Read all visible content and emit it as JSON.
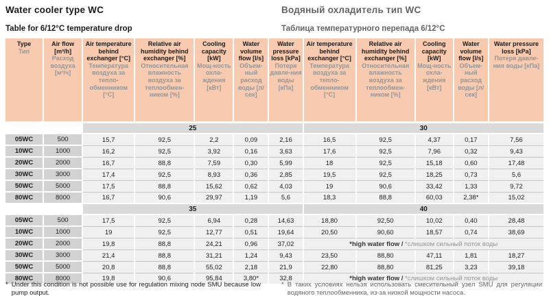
{
  "page": {
    "title_en": "Water cooler type WC",
    "title_ru": "Водяный охладитель тип WC",
    "subtitle_en": "Table for 6/12°C temperature drop",
    "subtitle_ru": "Таблица температурного перепада 6/12°C"
  },
  "colors": {
    "header_bg": "#f8cbb1",
    "gray_cell_bg": "#d2d2d2",
    "band_bg": "#dadada",
    "data_cell_bg": "#f0f0f0",
    "row_separator": "#c6c6c6",
    "header_text_en": "#1a1a1a",
    "header_text_ru": "#959595",
    "ru_title_text": "#636363"
  },
  "table": {
    "columns": [
      {
        "en": "Type",
        "ru": "Тип"
      },
      {
        "en": "Air flow [m³/h]",
        "ru": "Расход воздуха [м³/ч]"
      },
      {
        "en": "Air temperature behind exchanger [°C]",
        "ru": "Температура воздуха за тепло-обменником [°C]"
      },
      {
        "en": "Relative air humidity behind exchanger [%]",
        "ru": "Относительная влажность воздуха за теплообмен-ником [%]"
      },
      {
        "en": "Cooling capacity [kW]",
        "ru": "Мощ-ность охла-ждения [кВт]"
      },
      {
        "en": "Water volume flow [l/s]",
        "ru": "Объем-ный расход воды [л/сек]"
      },
      {
        "en": "Water pressure loss [kPa]",
        "ru": "Потеря давле-ния воды [кПа]"
      },
      {
        "en": "Air temperature behind exchanger [°C]",
        "ru": "Температура воздуха за тепло-обменником [°C]"
      },
      {
        "en": "Relative air humidity behind exchanger [%]",
        "ru": "Относительная влажность воздуха за теплообмен-ником [%]"
      },
      {
        "en": "Cooling capacity [kW]",
        "ru": "Мощ-ность охла-ждения [кВт]"
      },
      {
        "en": "Water volume flow [l/s]",
        "ru": "Объем-ный расход воды [л/сек]"
      },
      {
        "en": "Water pressure loss [kPa]",
        "ru": "Потеря давле-ния воды [кПа]"
      }
    ],
    "sections": [
      {
        "band_left": "25",
        "band_right": "30",
        "rows": [
          {
            "type": "05WC",
            "air_flow": "500",
            "left": [
              "15,7",
              "92,5",
              "2,2",
              "0,09",
              "2,16"
            ],
            "right": [
              "16,5",
              "92,5",
              "4,37",
              "0,17",
              "7,56"
            ]
          },
          {
            "type": "10WC",
            "air_flow": "1000",
            "left": [
              "16,2",
              "92,5",
              "3,92",
              "0,16",
              "3,63"
            ],
            "right": [
              "17,6",
              "92,5",
              "7,96",
              "0,32",
              "9,43"
            ]
          },
          {
            "type": "20WC",
            "air_flow": "2000",
            "left": [
              "16,7",
              "88,8",
              "7,59",
              "0,30",
              "5,99"
            ],
            "right": [
              "18",
              "92,5",
              "15,18",
              "0,60",
              "17,48"
            ]
          },
          {
            "type": "30WC",
            "air_flow": "3000",
            "left": [
              "17,4",
              "92,5",
              "8,93",
              "0,36",
              "2,85"
            ],
            "right": [
              "19,5",
              "92,5",
              "18,25",
              "0,73",
              "5,6"
            ]
          },
          {
            "type": "50WC",
            "air_flow": "5000",
            "left": [
              "17,5",
              "88,8",
              "15,62",
              "0,62",
              "4,03"
            ],
            "right": [
              "19",
              "90,6",
              "33,42",
              "1,33",
              "9,72"
            ]
          },
          {
            "type": "80WC",
            "air_flow": "8000",
            "left": [
              "16,7",
              "90,6",
              "29,97",
              "1,19",
              "5,6"
            ],
            "right": [
              "18,3",
              "88,8",
              "60,03",
              "2,38*",
              "15,02"
            ]
          }
        ]
      },
      {
        "band_left": "35",
        "band_right": "40",
        "rows": [
          {
            "type": "05WC",
            "air_flow": "500",
            "left": [
              "17,5",
              "92,5",
              "6,94",
              "0,28",
              "14,63"
            ],
            "right": [
              "18,80",
              "92,50",
              "10,02",
              "0,40",
              "28,48"
            ]
          },
          {
            "type": "10WC",
            "air_flow": "1000",
            "left": [
              "19",
              "92,5",
              "12,77",
              "0,51",
              "19,64"
            ],
            "right": [
              "20,50",
              "90,60",
              "18,57",
              "0,74",
              "38,69"
            ]
          },
          {
            "type": "20WC",
            "air_flow": "2000",
            "left": [
              "19,8",
              "88,8",
              "24,21",
              "0,96",
              "37,02"
            ],
            "right_note": {
              "en": "*high water flow /",
              "ru": "*слишком сильный поток воды"
            }
          },
          {
            "type": "30WC",
            "air_flow": "3000",
            "left": [
              "21,4",
              "88,8",
              "31,21",
              "1,24",
              "9,43"
            ],
            "right": [
              "23,50",
              "88,80",
              "47,11",
              "1,81",
              "18,27"
            ]
          },
          {
            "type": "50WC",
            "air_flow": "5000",
            "left": [
              "20,8",
              "88,8",
              "55,02",
              "2,18",
              "21,9"
            ],
            "right": [
              "22,80",
              "88,80",
              "81,25",
              "3,23",
              "39,18"
            ]
          },
          {
            "type": "80WC",
            "air_flow": "8000",
            "left": [
              "19,8",
              "90,6",
              "95,84",
              "3,80*",
              "32,8"
            ],
            "right_note": {
              "en": "*high water flow /",
              "ru": "*слишком сильный поток воды"
            }
          }
        ]
      }
    ]
  },
  "footnotes": {
    "en": {
      "marker": "*",
      "text": "Under this condition is not possible use for regulation mixing node SMU because low pump output."
    },
    "ru": {
      "marker": "*",
      "text": "В таких условиях нельзя использовать смесительный узел SMU для регуляции водяного теплообменника, из-за низкой мощности насоса."
    }
  }
}
